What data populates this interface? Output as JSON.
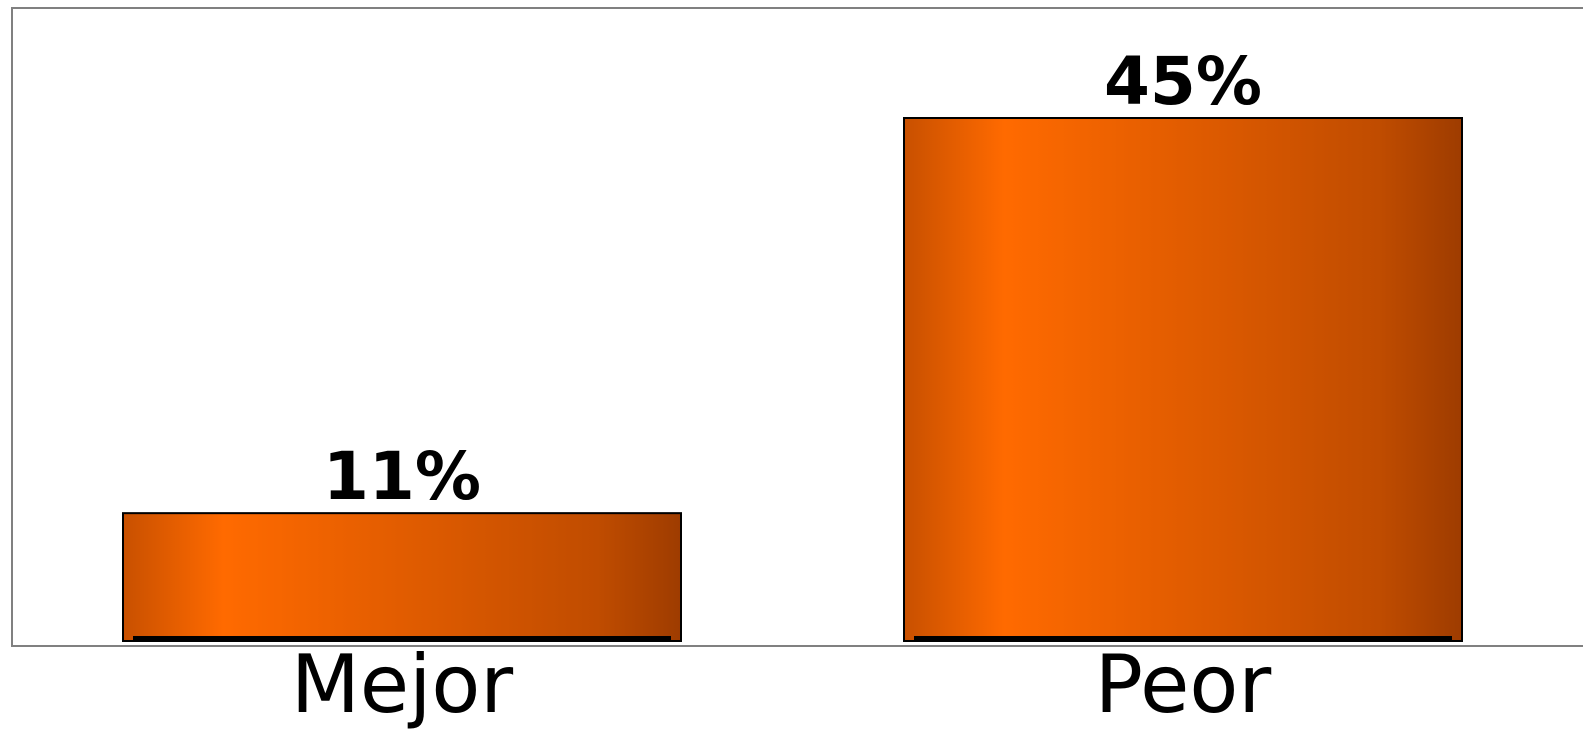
{
  "chart_data": {
    "type": "bar",
    "categories": [
      "Mejor",
      "Peor"
    ],
    "values": [
      11,
      45
    ],
    "value_labels": [
      "11%",
      "45%"
    ],
    "title": "",
    "xlabel": "",
    "ylabel": "",
    "ylim": [
      0,
      50
    ],
    "grid": false,
    "legend": "none"
  },
  "colors": {
    "bar_light": "#ff6a00",
    "bar_mid": "#d45500",
    "bar_dark": "#9e3c00",
    "frame": "#808080"
  }
}
